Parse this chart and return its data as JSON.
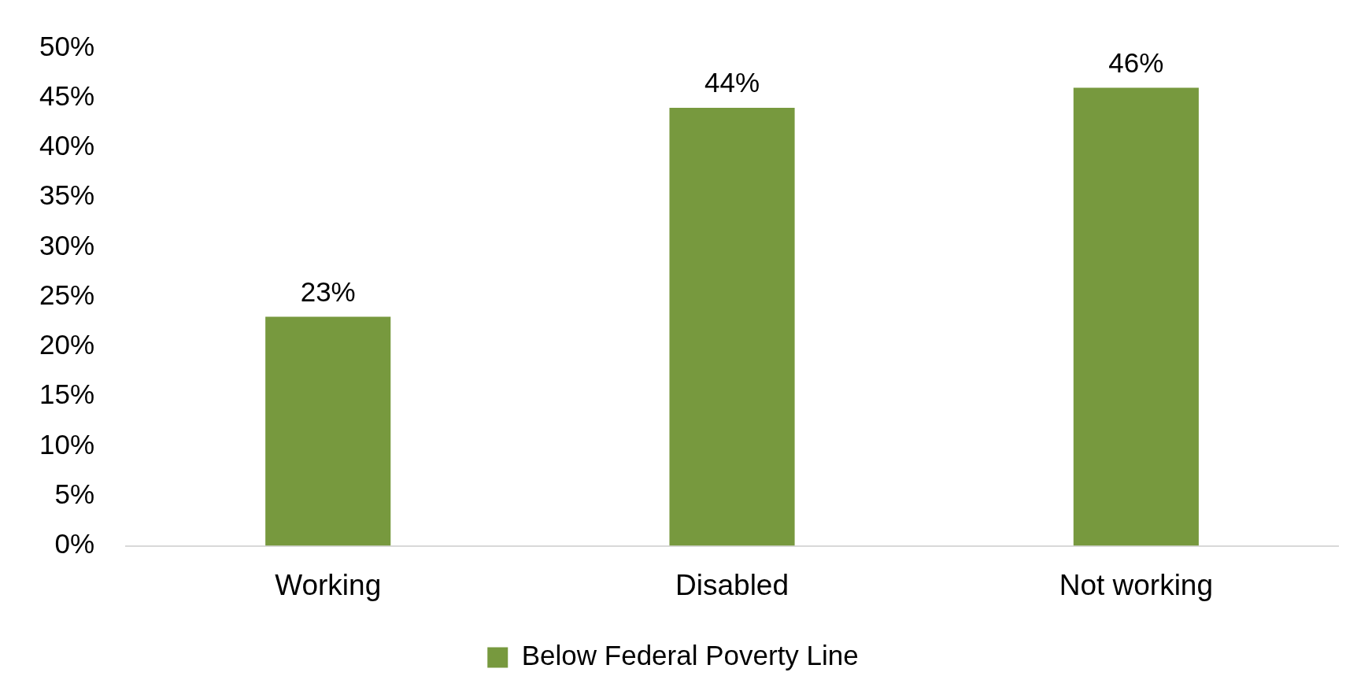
{
  "chart_data": {
    "type": "bar",
    "categories": [
      "Working",
      "Disabled",
      "Not working"
    ],
    "series": [
      {
        "name": "Below Federal Poverty Line",
        "color": "#77993e",
        "values": [
          23,
          44,
          46
        ]
      }
    ],
    "ylim": [
      0,
      50
    ],
    "yticks": [
      {
        "value": 0,
        "label": "0%"
      },
      {
        "value": 5,
        "label": "5%"
      },
      {
        "value": 10,
        "label": "10%"
      },
      {
        "value": 15,
        "label": "15%"
      },
      {
        "value": 20,
        "label": "20%"
      },
      {
        "value": 25,
        "label": "25%"
      },
      {
        "value": 30,
        "label": "30%"
      },
      {
        "value": 35,
        "label": "35%"
      },
      {
        "value": 40,
        "label": "40%"
      },
      {
        "value": 45,
        "label": "45%"
      },
      {
        "value": 50,
        "label": "50%"
      }
    ],
    "value_labels": [
      "23%",
      "44%",
      "46%"
    ],
    "grid": false,
    "legend": "bottom"
  }
}
